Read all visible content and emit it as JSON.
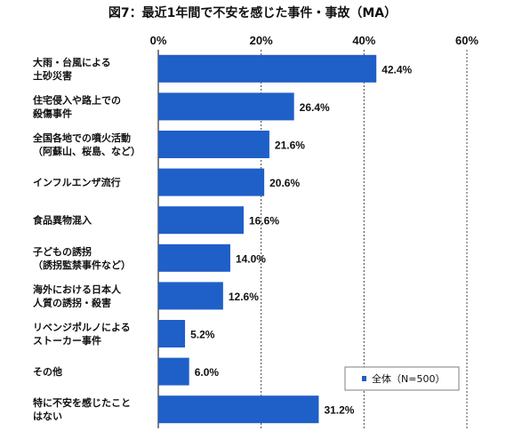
{
  "chart_data": {
    "type": "bar",
    "orientation": "horizontal",
    "title": "図7：最近1年間で不安を感じた事件・事故（MA）",
    "xlim": [
      0,
      60
    ],
    "xticks": [
      "0%",
      "20%",
      "40%",
      "60%"
    ],
    "grid": true,
    "legend": {
      "placement": "bottom-right",
      "label": "全体（N=500）"
    },
    "bar_color": "#1f5fc8",
    "categories": [
      [
        "大雨・台風による",
        "土砂災害"
      ],
      [
        "住宅侵入や路上での",
        "殺傷事件"
      ],
      [
        "全国各地での噴火活動",
        "（阿蘇山、桜島、など）"
      ],
      [
        "インフルエンザ流行"
      ],
      [
        "食品異物混入"
      ],
      [
        "子どもの誘拐",
        "（誘拐監禁事件など）"
      ],
      [
        "海外における日本人",
        "人質の誘拐・殺害"
      ],
      [
        "リベンジポルノによる",
        "ストーカー事件"
      ],
      [
        "その他"
      ],
      [
        "特に不安を感じたこと",
        "はない"
      ]
    ],
    "series": [
      {
        "name": "全体（N=500）",
        "values": [
          42.4,
          26.4,
          21.6,
          20.6,
          16.6,
          14.0,
          12.6,
          5.2,
          6.0,
          31.2
        ],
        "labels": [
          "42.4%",
          "26.4%",
          "21.6%",
          "20.6%",
          "16.6%",
          "14.0%",
          "12.6%",
          "5.2%",
          "6.0%",
          "31.2%"
        ]
      }
    ]
  }
}
